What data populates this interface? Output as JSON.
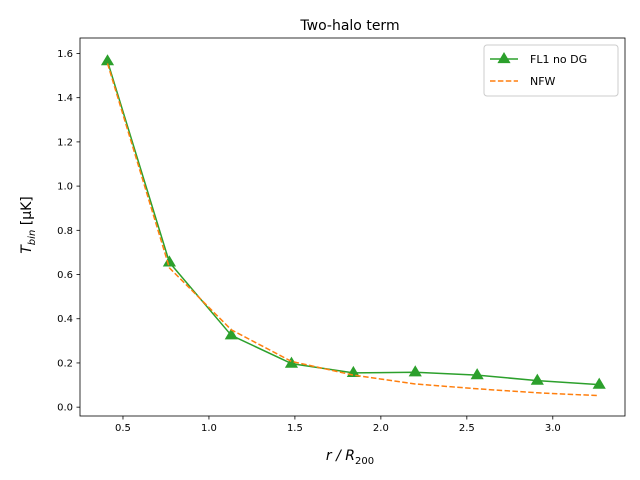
{
  "chart_data": {
    "type": "line",
    "title": "Two-halo term",
    "xlabel": {
      "main": "r / R",
      "sub": "200"
    },
    "ylabel": {
      "main": "T",
      "sub": "bin",
      "rest": " [μK]"
    },
    "xlim": [
      0.25,
      3.42
    ],
    "ylim": [
      -0.04,
      1.67
    ],
    "xticks": [
      0.5,
      1.0,
      1.5,
      2.0,
      2.5,
      3.0
    ],
    "xtick_labels": [
      "0.5",
      "1.0",
      "1.5",
      "2.0",
      "2.5",
      "3.0"
    ],
    "yticks": [
      0.0,
      0.2,
      0.4,
      0.6,
      0.8,
      1.0,
      1.2,
      1.4,
      1.6
    ],
    "ytick_labels": [
      "0.0",
      "0.2",
      "0.4",
      "0.6",
      "0.8",
      "1.0",
      "1.2",
      "1.4",
      "1.6"
    ],
    "grid": false,
    "legend_position": "top-right",
    "series": [
      {
        "name": "FL1 no DG",
        "color": "#2ca02c",
        "style": "solid",
        "marker": "triangle-up",
        "x": [
          0.41,
          0.77,
          1.13,
          1.48,
          1.84,
          2.2,
          2.56,
          2.91,
          3.27
        ],
        "y": [
          1.565,
          0.655,
          0.325,
          0.197,
          0.155,
          0.158,
          0.145,
          0.12,
          0.102
        ]
      },
      {
        "name": "NFW",
        "color": "#ff7f0e",
        "style": "dashed",
        "marker": "none",
        "x": [
          0.41,
          0.77,
          1.13,
          1.48,
          1.84,
          2.2,
          2.56,
          2.91,
          3.27
        ],
        "y": [
          1.555,
          0.63,
          0.35,
          0.207,
          0.145,
          0.105,
          0.083,
          0.065,
          0.052
        ]
      }
    ]
  }
}
